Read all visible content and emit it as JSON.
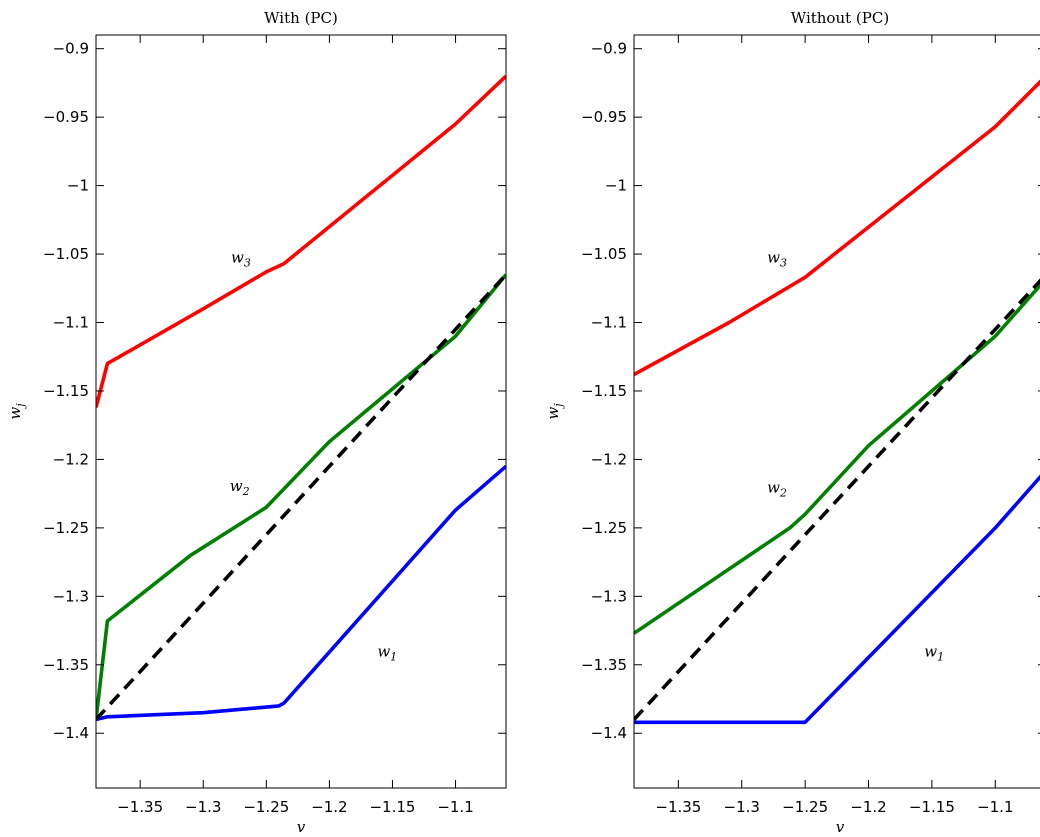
{
  "chart_data": [
    {
      "type": "line",
      "title": "With (PC)",
      "xlabel": "v",
      "ylabel": "w_j",
      "xlim": [
        -1.385,
        -1.06
      ],
      "ylim": [
        -1.44,
        -0.89
      ],
      "xticks": [
        -1.35,
        -1.3,
        -1.25,
        -1.2,
        -1.15,
        -1.1
      ],
      "xtick_labels": [
        "−1.35",
        "−1.3",
        "−1.25",
        "−1.2",
        "−1.15",
        "−1.1"
      ],
      "yticks": [
        -0.9,
        -0.95,
        -1.0,
        -1.05,
        -1.1,
        -1.15,
        -1.2,
        -1.25,
        -1.3,
        -1.35,
        -1.4
      ],
      "ytick_labels": [
        "−0.9",
        "−0.95",
        "−1",
        "−1.05",
        "−1.1",
        "−1.15",
        "−1.2",
        "−1.25",
        "−1.3",
        "−1.35",
        "−1.4"
      ],
      "series": [
        {
          "name": "w3",
          "color": "#ff0000",
          "dash": false,
          "points": [
            [
              -1.385,
              -1.162
            ],
            [
              -1.376,
              -1.13
            ],
            [
              -1.3,
              -1.09
            ],
            [
              -1.25,
              -1.063
            ],
            [
              -1.236,
              -1.057
            ],
            [
              -1.1,
              -0.955
            ],
            [
              -1.06,
              -0.92
            ]
          ]
        },
        {
          "name": "w2",
          "color": "#007f00",
          "dash": false,
          "points": [
            [
              -1.385,
              -1.39
            ],
            [
              -1.376,
              -1.318
            ],
            [
              -1.31,
              -1.27
            ],
            [
              -1.25,
              -1.235
            ],
            [
              -1.2,
              -1.187
            ],
            [
              -1.1,
              -1.11
            ],
            [
              -1.06,
              -1.065
            ]
          ]
        },
        {
          "name": "w1",
          "color": "#0000ff",
          "dash": false,
          "points": [
            [
              -1.385,
              -1.39
            ],
            [
              -1.376,
              -1.388
            ],
            [
              -1.3,
              -1.385
            ],
            [
              -1.24,
              -1.38
            ],
            [
              -1.236,
              -1.378
            ],
            [
              -1.1,
              -1.237
            ],
            [
              -1.06,
              -1.205
            ]
          ]
        },
        {
          "name": "",
          "color": "#000000",
          "dash": true,
          "points": [
            [
              -1.385,
              -1.39
            ],
            [
              -1.06,
              -1.065
            ]
          ]
        }
      ],
      "annotations": [
        {
          "base": "w",
          "sub": "3",
          "x": -1.278,
          "y": -1.056
        },
        {
          "base": "w",
          "sub": "2",
          "x": -1.279,
          "y": -1.223
        },
        {
          "base": "w",
          "sub": "1",
          "x": -1.162,
          "y": -1.344
        }
      ]
    },
    {
      "type": "line",
      "title": "Without (PC)",
      "xlabel": "v",
      "ylabel": "w_j",
      "xlim": [
        -1.385,
        -1.06
      ],
      "ylim": [
        -1.44,
        -0.89
      ],
      "xticks": [
        -1.35,
        -1.3,
        -1.25,
        -1.2,
        -1.15,
        -1.1
      ],
      "xtick_labels": [
        "−1.35",
        "−1.3",
        "−1.25",
        "−1.2",
        "−1.15",
        "−1.1"
      ],
      "yticks": [
        -0.9,
        -0.95,
        -1.0,
        -1.05,
        -1.1,
        -1.15,
        -1.2,
        -1.25,
        -1.3,
        -1.35,
        -1.4
      ],
      "ytick_labels": [
        "−0.9",
        "−0.95",
        "−1",
        "−1.05",
        "−1.1",
        "−1.15",
        "−1.2",
        "−1.25",
        "−1.3",
        "−1.35",
        "−1.4"
      ],
      "series": [
        {
          "name": "w3",
          "color": "#ff0000",
          "dash": false,
          "points": [
            [
              -1.385,
              -1.138
            ],
            [
              -1.31,
              -1.1
            ],
            [
              -1.25,
              -1.067
            ],
            [
              -1.1,
              -0.957
            ],
            [
              -1.06,
              -0.92
            ]
          ]
        },
        {
          "name": "w2",
          "color": "#007f00",
          "dash": false,
          "points": [
            [
              -1.385,
              -1.327
            ],
            [
              -1.262,
              -1.25
            ],
            [
              -1.25,
              -1.24
            ],
            [
              -1.2,
              -1.19
            ],
            [
              -1.1,
              -1.11
            ],
            [
              -1.06,
              -1.068
            ]
          ]
        },
        {
          "name": "w1",
          "color": "#0000ff",
          "dash": false,
          "points": [
            [
              -1.385,
              -1.392
            ],
            [
              -1.25,
              -1.392
            ],
            [
              -1.1,
              -1.25
            ],
            [
              -1.06,
              -1.208
            ]
          ]
        },
        {
          "name": "",
          "color": "#000000",
          "dash": true,
          "points": [
            [
              -1.385,
              -1.39
            ],
            [
              -1.06,
              -1.065
            ]
          ]
        }
      ],
      "annotations": [
        {
          "base": "w",
          "sub": "3",
          "x": -1.28,
          "y": -1.056
        },
        {
          "base": "w",
          "sub": "2",
          "x": -1.28,
          "y": -1.224
        },
        {
          "base": "w",
          "sub": "1",
          "x": -1.156,
          "y": -1.344
        }
      ]
    }
  ]
}
